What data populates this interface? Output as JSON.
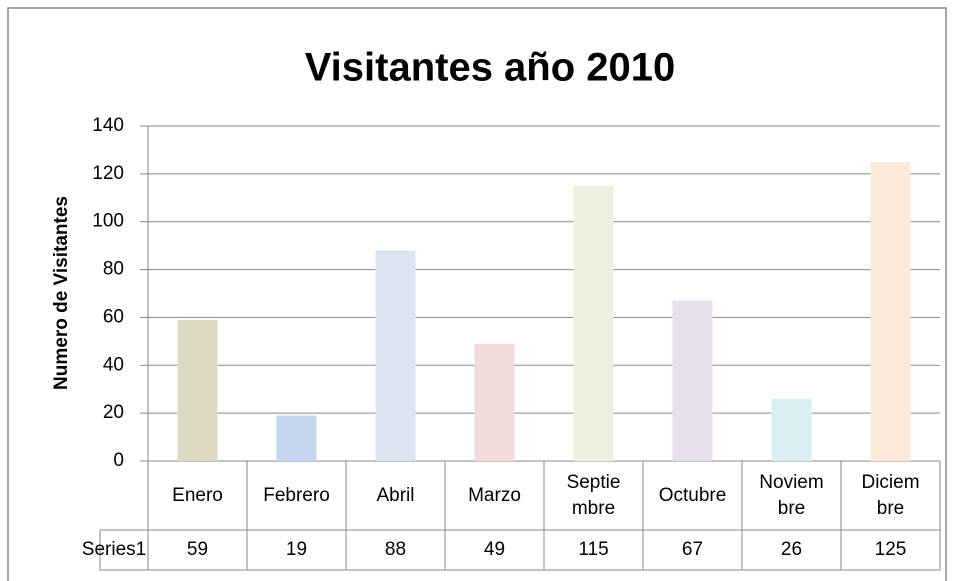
{
  "chart_data": {
    "type": "bar",
    "title": "Visitantes año 2010",
    "y_label": "Numero de Visitantes",
    "categories": [
      "Enero",
      "Febrero",
      "Abril",
      "Marzo",
      "Septiembre",
      "Octubre",
      "Noviembre",
      "Diciembre"
    ],
    "series": [
      {
        "name": "Series1",
        "values": [
          59,
          19,
          88,
          49,
          115,
          67,
          26,
          125
        ],
        "colors": [
          "#ddd9c3",
          "#c6d6ef",
          "#dbe5f1",
          "#f2dcdb",
          "#ebf1de",
          "#e5e0ec",
          "#dbeef3",
          "#fde9d9"
        ]
      }
    ],
    "ylim": [
      0,
      140
    ],
    "yticks": [
      0,
      20,
      40,
      60,
      80,
      100,
      120,
      140
    ],
    "grid": true,
    "data_table": true
  }
}
